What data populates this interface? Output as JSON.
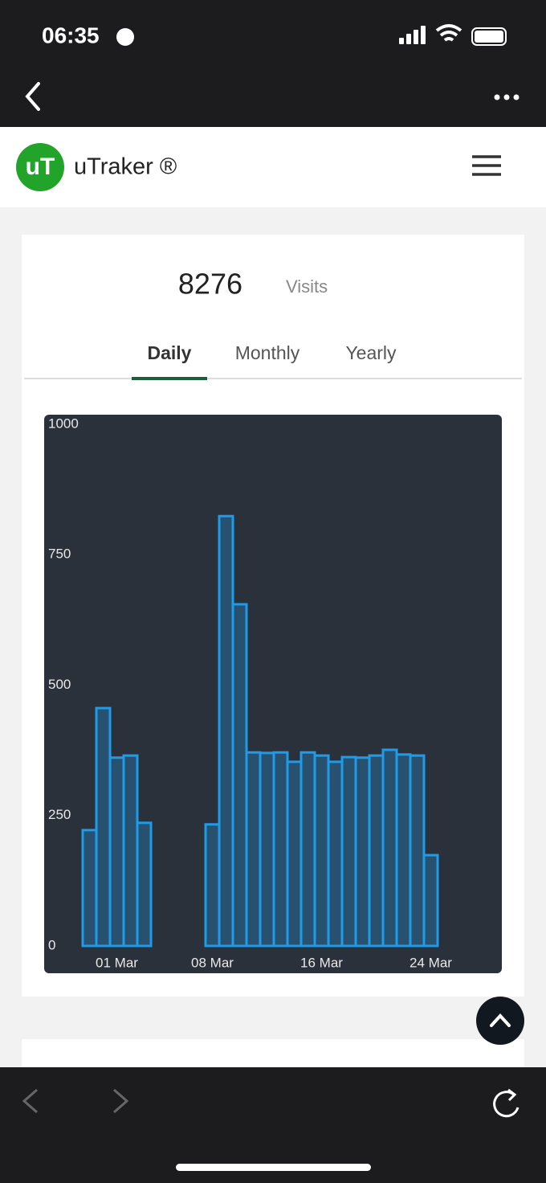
{
  "status_bar": {
    "time": "06:35"
  },
  "header": {
    "logo": "uT",
    "title": "uTraker ®"
  },
  "summary": {
    "count": 8276,
    "unit": "Visits"
  },
  "tabs": [
    "Daily",
    "Monthly",
    "Yearly"
  ],
  "chart_data": {
    "type": "bar",
    "categories": [
      null,
      null,
      "01 Mar",
      null,
      null,
      null,
      null,
      null,
      null,
      "08 Mar",
      null,
      null,
      null,
      null,
      null,
      null,
      null,
      "16 Mar",
      null,
      null,
      null,
      null,
      null,
      null,
      null,
      "24 Mar",
      null,
      null,
      null,
      null
    ],
    "values": [
      222,
      456,
      361,
      365,
      236,
      0,
      0,
      0,
      0,
      233,
      824,
      655,
      371,
      370,
      371,
      353,
      371,
      365,
      353,
      362,
      361,
      365,
      376,
      367,
      365,
      174,
      0,
      0,
      0,
      0
    ],
    "color": "#1e9be9",
    "ylim": [
      0,
      1000
    ],
    "yticks": [
      0,
      250,
      500,
      750,
      1000
    ]
  }
}
